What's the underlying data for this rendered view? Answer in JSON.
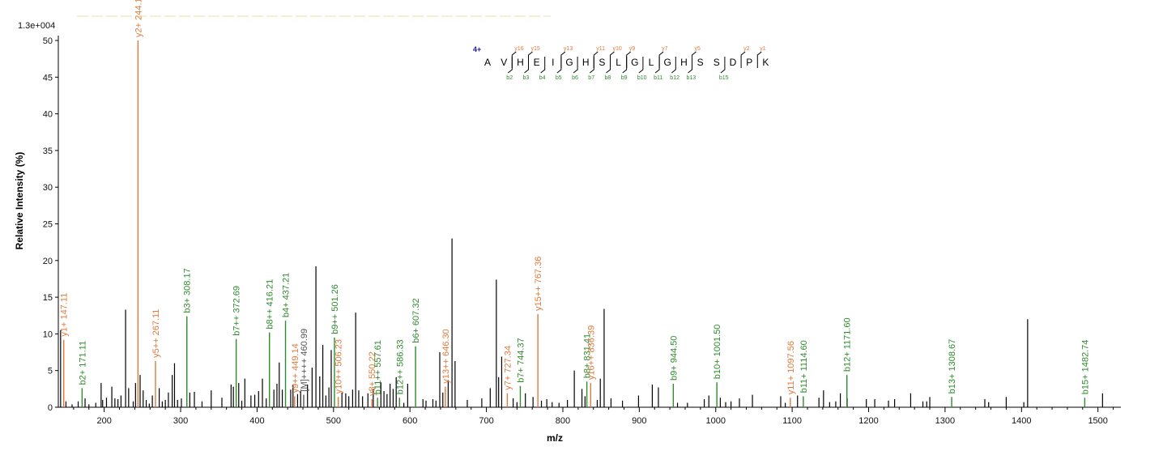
{
  "chart_data": {
    "type": "bar",
    "scale_label": "1.3e+004",
    "xlabel": "m/z",
    "ylabel": "Relative   Intensity (%)",
    "xlim": [
      140,
      1530
    ],
    "ylim": [
      0,
      50
    ],
    "x_ticks": [
      200,
      300,
      400,
      500,
      600,
      700,
      800,
      900,
      1000,
      1100,
      1200,
      1300,
      1400,
      1500
    ],
    "y_ticks": [
      0,
      5,
      10,
      15,
      20,
      25,
      30,
      35,
      40,
      45,
      50
    ],
    "colors": {
      "b": "#2e8b2e",
      "y": "#e07a3c",
      "other": "#000000",
      "precursor": "#555555",
      "charge": "#1a1aa6"
    },
    "precursor_charge": "4+",
    "sequence": [
      "A",
      "V",
      "H",
      "E",
      "I",
      "G",
      "H",
      "S",
      "L",
      "G",
      "L",
      "G",
      "H",
      "S",
      "S",
      "D",
      "P",
      "K"
    ],
    "y_fragment_marks": [
      {
        "after": 2,
        "label": "16"
      },
      {
        "after": 3,
        "label": "15"
      },
      {
        "after": 5,
        "label": "13"
      },
      {
        "after": 7,
        "label": "11"
      },
      {
        "after": 8,
        "label": "10"
      },
      {
        "after": 9,
        "label": "9"
      },
      {
        "after": 11,
        "label": "7"
      },
      {
        "after": 13,
        "label": "5"
      },
      {
        "after": 16,
        "label": "2"
      },
      {
        "after": 17,
        "label": "1"
      }
    ],
    "b_fragment_marks": [
      {
        "after": 2,
        "label": "2"
      },
      {
        "after": 3,
        "label": "3"
      },
      {
        "after": 4,
        "label": "4"
      },
      {
        "after": 5,
        "label": "5"
      },
      {
        "after": 6,
        "label": "6"
      },
      {
        "after": 7,
        "label": "7"
      },
      {
        "after": 8,
        "label": "8"
      },
      {
        "after": 9,
        "label": "9"
      },
      {
        "after": 10,
        "label": "10"
      },
      {
        "after": 11,
        "label": "11"
      },
      {
        "after": 12,
        "label": "12"
      },
      {
        "after": 13,
        "label": "13"
      },
      {
        "after": 15,
        "label": "15"
      }
    ],
    "labeled_peaks": [
      {
        "mz": 147.11,
        "intensity": 9.2,
        "ion": "y",
        "label": "y1+ 147.11"
      },
      {
        "mz": 171.11,
        "intensity": 2.6,
        "ion": "b",
        "label": "b2+ 171.11"
      },
      {
        "mz": 244.18,
        "intensity": 50,
        "ion": "y",
        "label": "y2+ 244.18"
      },
      {
        "mz": 267.11,
        "intensity": 6.3,
        "ion": "y",
        "label": "y5++ 267.11"
      },
      {
        "mz": 308.17,
        "intensity": 12.4,
        "ion": "b",
        "label": "b3+ 308.17"
      },
      {
        "mz": 372.69,
        "intensity": 9.3,
        "ion": "b",
        "label": "b7++ 372.69"
      },
      {
        "mz": 416.21,
        "intensity": 10.2,
        "ion": "b",
        "label": "b8++ 416.21"
      },
      {
        "mz": 437.21,
        "intensity": 11.8,
        "ion": "b",
        "label": "b4+ 437.21"
      },
      {
        "mz": 449.14,
        "intensity": 1.5,
        "ion": "y",
        "label": "y9++ 449.14"
      },
      {
        "mz": 460.99,
        "intensity": 1.7,
        "ion": "p",
        "label": "[M]++++ 460.99"
      },
      {
        "mz": 501.26,
        "intensity": 9.5,
        "ion": "b",
        "label": "b9++ 501.26"
      },
      {
        "mz": 506.23,
        "intensity": 1.4,
        "ion": "y",
        "label": "y10++ 506.23"
      },
      {
        "mz": 550.22,
        "intensity": 1.1,
        "ion": "y",
        "label": "y8+ 550.22"
      },
      {
        "mz": 557.61,
        "intensity": 1.3,
        "ion": "b",
        "label": "b11++ 557.61"
      },
      {
        "mz": 586.33,
        "intensity": 1.3,
        "ion": "b",
        "label": "b12++ 586.33"
      },
      {
        "mz": 607.32,
        "intensity": 8.3,
        "ion": "b",
        "label": "b6+ 607.32"
      },
      {
        "mz": 646.3,
        "intensity": 2.8,
        "ion": "y",
        "label": "y13++ 646.30"
      },
      {
        "mz": 727.34,
        "intensity": 1.9,
        "ion": "y",
        "label": "y7+ 727.34"
      },
      {
        "mz": 744.37,
        "intensity": 2.9,
        "ion": "b",
        "label": "b7+ 744.37"
      },
      {
        "mz": 767.36,
        "intensity": 12.7,
        "ion": "y",
        "label": "y15++ 767.36"
      },
      {
        "mz": 831.41,
        "intensity": 3.5,
        "ion": "b",
        "label": "b8+ 831.41"
      },
      {
        "mz": 836.39,
        "intensity": 3.3,
        "ion": "y",
        "label": "y16++ 836.39"
      },
      {
        "mz": 944.5,
        "intensity": 3.2,
        "ion": "b",
        "label": "b9+ 944.50"
      },
      {
        "mz": 1001.5,
        "intensity": 3.4,
        "ion": "b",
        "label": "b10+ 1001.50"
      },
      {
        "mz": 1097.56,
        "intensity": 1.3,
        "ion": "y",
        "label": "y11+ 1097.56"
      },
      {
        "mz": 1114.6,
        "intensity": 1.5,
        "ion": "b",
        "label": "b11+ 1114.60"
      },
      {
        "mz": 1171.6,
        "intensity": 4.4,
        "ion": "b",
        "label": "b12+ 1171.60"
      },
      {
        "mz": 1308.67,
        "intensity": 1.4,
        "ion": "b",
        "label": "b13+ 1308.67"
      },
      {
        "mz": 1482.74,
        "intensity": 1.3,
        "ion": "b",
        "label": "b15+ 1482.74"
      }
    ],
    "unlabeled_peaks": [
      [
        143,
        10.5
      ],
      [
        150,
        0.8
      ],
      [
        158,
        0.4
      ],
      [
        166,
        0.8
      ],
      [
        175,
        1.2
      ],
      [
        180,
        0.4
      ],
      [
        189,
        0.6
      ],
      [
        196,
        3.3
      ],
      [
        198,
        1.0
      ],
      [
        203,
        1.3
      ],
      [
        210,
        2.8
      ],
      [
        214,
        1.2
      ],
      [
        218,
        1.1
      ],
      [
        222,
        1.6
      ],
      [
        228,
        13.3
      ],
      [
        232,
        2.6
      ],
      [
        238,
        0.8
      ],
      [
        241,
        3.3
      ],
      [
        247,
        4.4
      ],
      [
        251,
        2.3
      ],
      [
        255,
        1.0
      ],
      [
        259,
        0.5
      ],
      [
        263,
        1.6
      ],
      [
        272,
        2.6
      ],
      [
        276,
        0.8
      ],
      [
        280,
        1.0
      ],
      [
        284,
        2.0
      ],
      [
        289,
        4.4
      ],
      [
        292,
        6.0
      ],
      [
        296,
        1.0
      ],
      [
        301,
        1.2
      ],
      [
        312,
        2.0
      ],
      [
        318,
        2.1
      ],
      [
        328,
        0.8
      ],
      [
        340,
        2.3
      ],
      [
        354,
        1.3
      ],
      [
        366,
        3.1
      ],
      [
        369,
        2.8
      ],
      [
        376,
        3.3
      ],
      [
        380,
        0.9
      ],
      [
        384,
        3.9
      ],
      [
        392,
        1.6
      ],
      [
        397,
        1.7
      ],
      [
        402,
        2.2
      ],
      [
        407,
        3.9
      ],
      [
        412,
        1.2
      ],
      [
        422,
        2.4
      ],
      [
        426,
        3.2
      ],
      [
        429,
        6.1
      ],
      [
        433,
        2.4
      ],
      [
        444,
        2.4
      ],
      [
        447,
        3.1
      ],
      [
        453,
        1.8
      ],
      [
        457,
        2.2
      ],
      [
        466,
        3.1
      ],
      [
        472,
        5.4
      ],
      [
        477,
        19.2
      ],
      [
        482,
        4.2
      ],
      [
        486,
        8.5
      ],
      [
        490,
        1.6
      ],
      [
        494,
        2.7
      ],
      [
        497,
        7.8
      ],
      [
        511,
        2.0
      ],
      [
        516,
        1.9
      ],
      [
        520,
        1.5
      ],
      [
        525,
        2.4
      ],
      [
        529,
        12.9
      ],
      [
        533,
        2.3
      ],
      [
        538,
        1.5
      ],
      [
        545,
        1.9
      ],
      [
        552,
        2.5
      ],
      [
        562,
        3.4
      ],
      [
        566,
        2.2
      ],
      [
        570,
        1.8
      ],
      [
        574,
        3.2
      ],
      [
        578,
        2.5
      ],
      [
        582,
        4.1
      ],
      [
        592,
        0.6
      ],
      [
        597,
        3.2
      ],
      [
        617,
        1.1
      ],
      [
        621,
        0.9
      ],
      [
        630,
        1.1
      ],
      [
        634,
        0.9
      ],
      [
        639,
        7.5
      ],
      [
        643,
        2.0
      ],
      [
        650,
        3.7
      ],
      [
        655,
        23
      ],
      [
        659,
        6.3
      ],
      [
        675,
        1.0
      ],
      [
        694,
        1.2
      ],
      [
        705,
        2.6
      ],
      [
        713,
        17.4
      ],
      [
        716,
        4.1
      ],
      [
        720,
        6.9
      ],
      [
        735,
        1.2
      ],
      [
        740,
        0.7
      ],
      [
        751,
        1.9
      ],
      [
        761,
        1.4
      ],
      [
        772,
        0.9
      ],
      [
        779,
        1.1
      ],
      [
        786,
        0.7
      ],
      [
        795,
        0.6
      ],
      [
        806,
        1.0
      ],
      [
        815,
        5.0
      ],
      [
        825,
        2.5
      ],
      [
        829,
        1.5
      ],
      [
        845,
        1.0
      ],
      [
        849,
        3.9
      ],
      [
        854,
        13.4
      ],
      [
        863,
        1.2
      ],
      [
        878,
        0.9
      ],
      [
        899,
        1.6
      ],
      [
        917,
        3.1
      ],
      [
        925,
        2.7
      ],
      [
        950,
        0.6
      ],
      [
        963,
        0.6
      ],
      [
        985,
        1.1
      ],
      [
        991,
        1.6
      ],
      [
        1006,
        1.3
      ],
      [
        1013,
        0.7
      ],
      [
        1020,
        0.8
      ],
      [
        1031,
        1.2
      ],
      [
        1048,
        1.7
      ],
      [
        1085,
        1.5
      ],
      [
        1091,
        0.6
      ],
      [
        1107,
        1.6
      ],
      [
        1135,
        1.3
      ],
      [
        1141,
        2.3
      ],
      [
        1149,
        0.7
      ],
      [
        1157,
        0.8
      ],
      [
        1163,
        1.9
      ],
      [
        1172,
        1.2
      ],
      [
        1197,
        1.1
      ],
      [
        1208,
        1.1
      ],
      [
        1226,
        0.9
      ],
      [
        1234,
        1.1
      ],
      [
        1255,
        1.9
      ],
      [
        1271,
        0.8
      ],
      [
        1276,
        0.8
      ],
      [
        1280,
        1.4
      ],
      [
        1352,
        1.1
      ],
      [
        1357,
        0.7
      ],
      [
        1380,
        1.4
      ],
      [
        1403,
        0.7
      ],
      [
        1408,
        12.0
      ],
      [
        1506,
        1.9
      ]
    ]
  }
}
